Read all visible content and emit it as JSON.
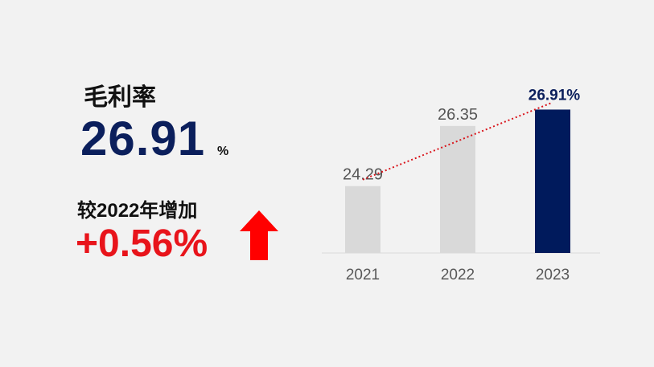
{
  "kpi": {
    "title": "毛利率",
    "value": "26.91",
    "unit": "%",
    "comparison_label": "较2022年增加",
    "change": "+0.56%",
    "arrow_icon": "up-arrow-icon",
    "arrow_color": "#ff0000"
  },
  "chart_data": {
    "type": "bar",
    "categories": [
      "2021",
      "2022",
      "2023"
    ],
    "values": [
      24.29,
      26.35,
      26.91
    ],
    "data_labels": [
      "24.29",
      "26.35",
      "26.91%"
    ],
    "ylim": [
      22,
      27.5
    ],
    "colors": [
      "#d9d9d9",
      "#d9d9d9",
      "#001a5c"
    ],
    "trendline": {
      "style": "dotted",
      "color": "#d9141b"
    },
    "grid": false
  }
}
